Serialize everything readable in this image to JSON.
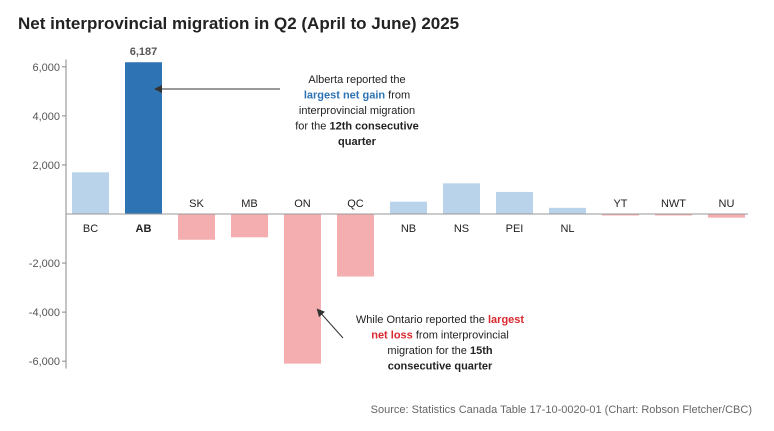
{
  "chart_data": {
    "type": "bar",
    "title": "Net interprovincial migration in Q2 (April to June) 2025",
    "categories": [
      "BC",
      "AB",
      "SK",
      "MB",
      "ON",
      "QC",
      "NB",
      "NS",
      "PEI",
      "NL",
      "YT",
      "NWT",
      "NU"
    ],
    "values": [
      1700,
      6187,
      -1050,
      -950,
      -6100,
      -2550,
      500,
      1250,
      900,
      250,
      -50,
      -50,
      -150
    ],
    "value_labels": {
      "AB": "6,187"
    },
    "highlight": {
      "AB": "#2e74b5",
      "ON": "#f4aeb0"
    },
    "ylim": [
      -6300,
      6300
    ],
    "yticks": [
      6000,
      4000,
      2000,
      -2000,
      -4000,
      -6000
    ],
    "ytick_labels": [
      "6,000",
      "4,000",
      "2,000",
      "-2,000",
      "-4,000",
      "-6,000"
    ],
    "colors": {
      "positive": "#b8d3ea",
      "negative": "#f4aeb0",
      "highlight_positive": "#2e74b5",
      "gain_text": "#2e74b5",
      "loss_text": "#d9282f"
    },
    "annotations": [
      {
        "target": "AB",
        "lines": [
          [
            {
              "t": "Alberta reported the",
              "style": "normal"
            }
          ],
          [
            {
              "t": "largest net gain",
              "style": "gain"
            },
            {
              "t": " from",
              "style": "normal"
            }
          ],
          [
            {
              "t": "interprovincial migration",
              "style": "normal"
            }
          ],
          [
            {
              "t": "for the ",
              "style": "normal"
            },
            {
              "t": "12th consecutive",
              "style": "bold"
            }
          ],
          [
            {
              "t": "quarter",
              "style": "bold"
            }
          ]
        ]
      },
      {
        "target": "ON",
        "lines": [
          [
            {
              "t": "While Ontario reported the ",
              "style": "normal"
            },
            {
              "t": "largest",
              "style": "loss"
            }
          ],
          [
            {
              "t": "net loss",
              "style": "loss"
            },
            {
              "t": " from interprovincial",
              "style": "normal"
            }
          ],
          [
            {
              "t": "migration for the ",
              "style": "normal"
            },
            {
              "t": "15th",
              "style": "bold"
            }
          ],
          [
            {
              "t": "consecutive quarter",
              "style": "bold"
            }
          ]
        ]
      }
    ]
  },
  "source": "Source: Statistics Canada Table 17-10-0020-01 (Chart: Robson Fletcher/CBC)"
}
